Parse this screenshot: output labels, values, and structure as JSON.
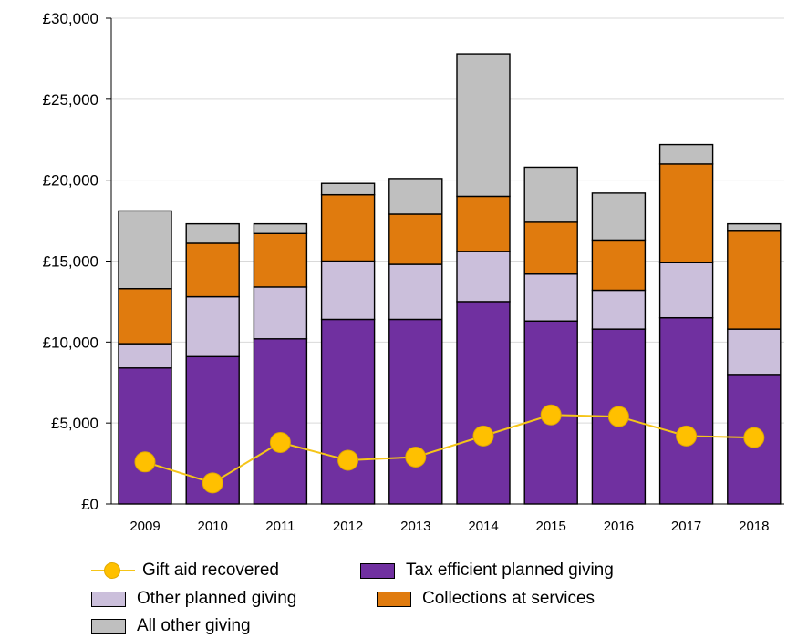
{
  "chart_data": {
    "type": "bar",
    "stacked": true,
    "categories": [
      "2009",
      "2010",
      "2011",
      "2012",
      "2013",
      "2014",
      "2015",
      "2016",
      "2017",
      "2018"
    ],
    "series": [
      {
        "name": "Tax efficient planned giving",
        "color": "#7030a0",
        "values": [
          8400,
          9100,
          10200,
          11400,
          11400,
          12500,
          11300,
          10800,
          11500,
          8000
        ]
      },
      {
        "name": "Other planned giving",
        "color": "#cbbfdb",
        "values": [
          1500,
          3700,
          3200,
          3600,
          3400,
          3100,
          2900,
          2400,
          3400,
          2800
        ]
      },
      {
        "name": "Collections at services",
        "color": "#e07b0e",
        "values": [
          3400,
          3300,
          3300,
          4100,
          3100,
          3400,
          3200,
          3100,
          6100,
          6100
        ]
      },
      {
        "name": "All other giving",
        "color": "#bfbfbf",
        "values": [
          4800,
          1200,
          600,
          700,
          2200,
          8800,
          3400,
          2900,
          1200,
          400
        ]
      }
    ],
    "line_series": {
      "name": "Gift aid recovered",
      "color": "#ffc000",
      "line_color": "#f5c518",
      "values": [
        2600,
        1300,
        3800,
        2700,
        2900,
        4200,
        5500,
        5400,
        4200,
        4100
      ]
    },
    "y_ticks": [
      "£0",
      "£5,000",
      "£10,000",
      "£15,000",
      "£20,000",
      "£25,000",
      "£30,000"
    ],
    "ylim": [
      0,
      30000
    ],
    "grid": true,
    "legend_position": "bottom",
    "title": "",
    "xlabel": "",
    "ylabel": ""
  }
}
